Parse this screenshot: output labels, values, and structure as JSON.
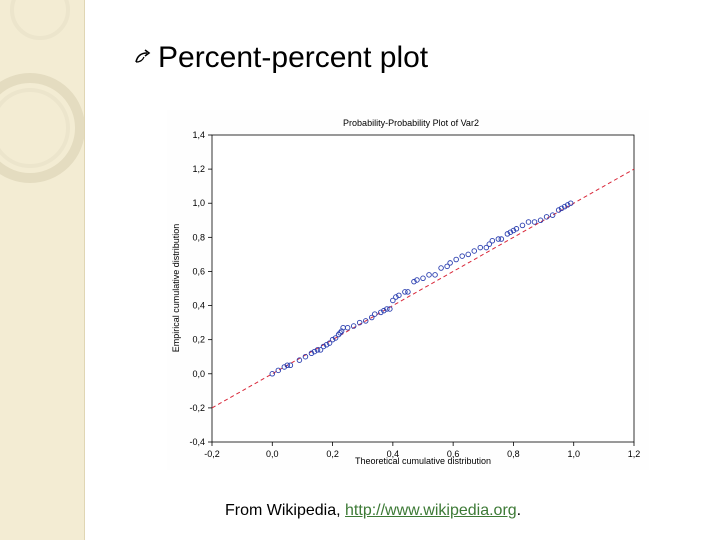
{
  "slide": {
    "heading": "Percent-percent plot",
    "caption_prefix": "From Wikipedia, ",
    "caption_link": "http://www.wikipedia.org",
    "caption_suffix": "."
  },
  "colors": {
    "point_stroke": "#2b3fb0",
    "reference_line": "#d9283a",
    "deco_background": "#f3ecd3",
    "deco_ring": "#e4dcc0",
    "link": "#3d7a36"
  },
  "icons": {
    "bullet": "curved-arrow-bullet-icon"
  },
  "chart_data": {
    "type": "scatter",
    "title": "Probability-Probability Plot of Var2",
    "xlabel": "Theoretical cumulative distribution",
    "ylabel": "Empirical cumulative distribution",
    "xlim": [
      -0.2,
      1.2
    ],
    "ylim": [
      -0.4,
      1.4
    ],
    "x_ticks": [
      "-0,2",
      "0,0",
      "0,2",
      "0,4",
      "0,6",
      "0,8",
      "1,0",
      "1,2"
    ],
    "y_ticks": [
      "-0,4",
      "-0,2",
      "0,0",
      "0,2",
      "0,4",
      "0,6",
      "0,8",
      "1,0",
      "1,2",
      "1,4"
    ],
    "grid": false,
    "reference_line": {
      "from": [
        -0.2,
        -0.2
      ],
      "to": [
        1.2,
        1.2
      ]
    },
    "series": [
      {
        "x": [
          0.0,
          0.02,
          0.04,
          0.05,
          0.06,
          0.09,
          0.11,
          0.13,
          0.14,
          0.15,
          0.16,
          0.17,
          0.18,
          0.19,
          0.2,
          0.21,
          0.22,
          0.225,
          0.23,
          0.235,
          0.25,
          0.27,
          0.29,
          0.31,
          0.33,
          0.34,
          0.36,
          0.37,
          0.38,
          0.39,
          0.4,
          0.41,
          0.42,
          0.44,
          0.45,
          0.47,
          0.48,
          0.5,
          0.52,
          0.54,
          0.56,
          0.58,
          0.59,
          0.61,
          0.63,
          0.65,
          0.67,
          0.69,
          0.71,
          0.72,
          0.73,
          0.75,
          0.76,
          0.78,
          0.79,
          0.8,
          0.81,
          0.83,
          0.85,
          0.87,
          0.89,
          0.91,
          0.93,
          0.95,
          0.96,
          0.97,
          0.98,
          0.99
        ],
        "y": [
          0.0,
          0.02,
          0.04,
          0.05,
          0.05,
          0.08,
          0.1,
          0.12,
          0.13,
          0.14,
          0.14,
          0.16,
          0.17,
          0.18,
          0.2,
          0.21,
          0.23,
          0.24,
          0.25,
          0.27,
          0.27,
          0.28,
          0.3,
          0.31,
          0.33,
          0.35,
          0.36,
          0.37,
          0.38,
          0.38,
          0.43,
          0.45,
          0.46,
          0.48,
          0.48,
          0.54,
          0.55,
          0.56,
          0.58,
          0.58,
          0.62,
          0.63,
          0.65,
          0.67,
          0.69,
          0.7,
          0.72,
          0.74,
          0.74,
          0.76,
          0.78,
          0.79,
          0.79,
          0.82,
          0.83,
          0.84,
          0.85,
          0.87,
          0.89,
          0.89,
          0.9,
          0.92,
          0.93,
          0.96,
          0.97,
          0.98,
          0.99,
          1.0
        ]
      }
    ]
  }
}
